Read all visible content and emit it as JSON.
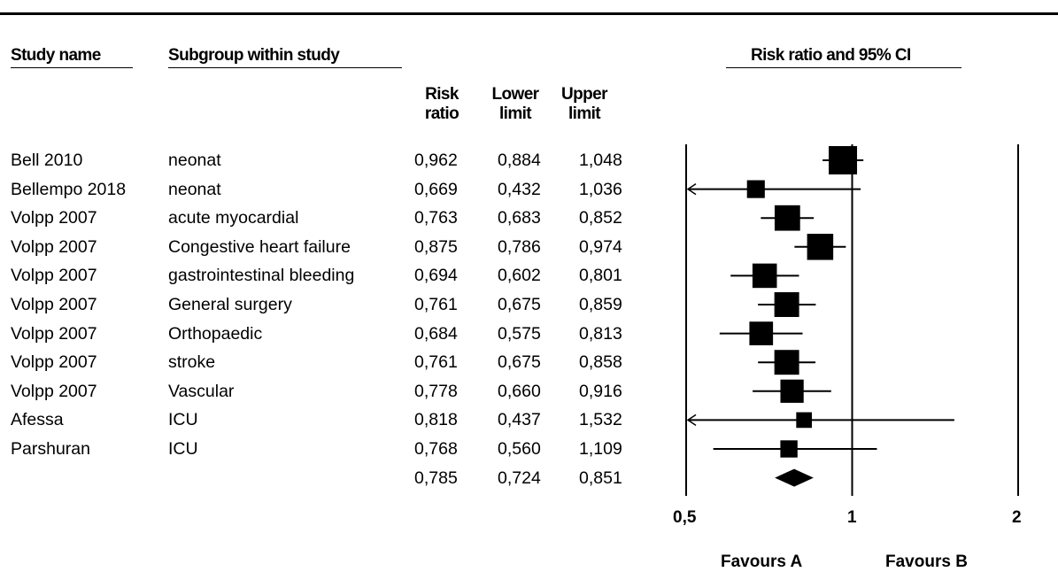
{
  "headers": {
    "study": "Study name",
    "subgroup": "Subgroup within study",
    "plot": "Risk ratio and 95% CI",
    "risk": [
      "Risk",
      "ratio"
    ],
    "lower": [
      "Lower",
      "limit"
    ],
    "upper": [
      "Upper",
      "limit"
    ]
  },
  "rows": [
    {
      "study": "Bell 2010",
      "subgroup": "neonat",
      "rr": "0,962",
      "lower": "0,884",
      "upper": "1,048"
    },
    {
      "study": "Bellempo 2018",
      "subgroup": "neonat",
      "rr": "0,669",
      "lower": "0,432",
      "upper": "1,036"
    },
    {
      "study": "Volpp 2007",
      "subgroup": "acute myocardial",
      "rr": "0,763",
      "lower": "0,683",
      "upper": "0,852"
    },
    {
      "study": "Volpp 2007",
      "subgroup": "Congestive heart failure",
      "rr": "0,875",
      "lower": "0,786",
      "upper": "0,974"
    },
    {
      "study": "Volpp 2007",
      "subgroup": "gastrointestinal bleeding",
      "rr": "0,694",
      "lower": "0,602",
      "upper": "0,801"
    },
    {
      "study": "Volpp 2007",
      "subgroup": "General surgery",
      "rr": "0,761",
      "lower": "0,675",
      "upper": "0,859"
    },
    {
      "study": "Volpp 2007",
      "subgroup": "Orthopaedic",
      "rr": "0,684",
      "lower": "0,575",
      "upper": "0,813"
    },
    {
      "study": "Volpp 2007",
      "subgroup": "stroke",
      "rr": "0,761",
      "lower": "0,675",
      "upper": "0,858"
    },
    {
      "study": "Volpp 2007",
      "subgroup": "Vascular",
      "rr": "0,778",
      "lower": "0,660",
      "upper": "0,916"
    },
    {
      "study": "Afessa",
      "subgroup": "ICU",
      "rr": "0,818",
      "lower": "0,437",
      "upper": "1,532"
    },
    {
      "study": "Parshuran",
      "subgroup": "ICU",
      "rr": "0,768",
      "lower": "0,560",
      "upper": "1,109"
    }
  ],
  "summary": {
    "rr": "0,785",
    "lower": "0,724",
    "upper": "0,851"
  },
  "axis": {
    "ticks": [
      "0,5",
      "1",
      "2"
    ]
  },
  "favours": {
    "left": "Favours A",
    "right": "Favours B"
  },
  "chart_data": {
    "type": "forest",
    "scale": "log",
    "xlim": [
      0.5,
      2
    ],
    "xticks": [
      0.5,
      1,
      2
    ],
    "xtick_labels": [
      "0,5",
      "1",
      "2"
    ],
    "title": "Risk ratio and 95% CI",
    "favours_labels": [
      "Favours A",
      "Favours B"
    ],
    "studies": [
      {
        "name": "Bell 2010",
        "subgroup": "neonat",
        "rr": 0.962,
        "lower": 0.884,
        "upper": 1.048
      },
      {
        "name": "Bellempo 2018",
        "subgroup": "neonat",
        "rr": 0.669,
        "lower": 0.432,
        "upper": 1.036
      },
      {
        "name": "Volpp 2007",
        "subgroup": "acute myocardial",
        "rr": 0.763,
        "lower": 0.683,
        "upper": 0.852
      },
      {
        "name": "Volpp 2007",
        "subgroup": "Congestive heart failure",
        "rr": 0.875,
        "lower": 0.786,
        "upper": 0.974
      },
      {
        "name": "Volpp 2007",
        "subgroup": "gastrointestinal bleeding",
        "rr": 0.694,
        "lower": 0.602,
        "upper": 0.801
      },
      {
        "name": "Volpp 2007",
        "subgroup": "General surgery",
        "rr": 0.761,
        "lower": 0.675,
        "upper": 0.859
      },
      {
        "name": "Volpp 2007",
        "subgroup": "Orthopaedic",
        "rr": 0.684,
        "lower": 0.575,
        "upper": 0.813
      },
      {
        "name": "Volpp 2007",
        "subgroup": "stroke",
        "rr": 0.761,
        "lower": 0.675,
        "upper": 0.858
      },
      {
        "name": "Volpp 2007",
        "subgroup": "Vascular",
        "rr": 0.778,
        "lower": 0.66,
        "upper": 0.916
      },
      {
        "name": "Afessa",
        "subgroup": "ICU",
        "rr": 0.818,
        "lower": 0.437,
        "upper": 1.532
      },
      {
        "name": "Parshuran",
        "subgroup": "ICU",
        "rr": 0.768,
        "lower": 0.56,
        "upper": 1.109
      }
    ],
    "summary": {
      "rr": 0.785,
      "lower": 0.724,
      "upper": 0.851
    },
    "weights": [
      3.3,
      0.7,
      2.4,
      2.6,
      2.1,
      2.2,
      1.9,
      2.2,
      1.8,
      0.4,
      0.6
    ]
  }
}
